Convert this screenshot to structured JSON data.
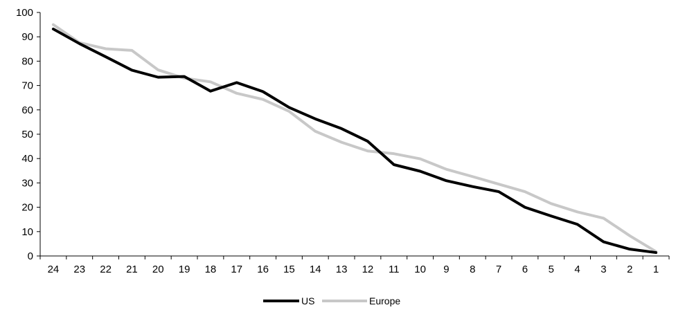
{
  "chart_data": {
    "type": "line",
    "categories": [
      "24",
      "23",
      "22",
      "21",
      "20",
      "19",
      "18",
      "17",
      "16",
      "15",
      "14",
      "13",
      "12",
      "11",
      "10",
      "9",
      "8",
      "7",
      "6",
      "5",
      "4",
      "3",
      "2",
      "1"
    ],
    "series": [
      {
        "name": "US",
        "color": "#000000",
        "values": [
          93.2,
          87.2,
          81.8,
          76.3,
          73.4,
          73.7,
          67.7,
          71.2,
          67.5,
          61.0,
          56.3,
          52.3,
          47.1,
          37.5,
          34.8,
          30.9,
          28.5,
          26.4,
          20.0,
          16.4,
          13.0,
          5.8,
          2.8,
          1.4
        ]
      },
      {
        "name": "Europe",
        "color": "#c8c8c8",
        "values": [
          95.0,
          87.6,
          85.1,
          84.4,
          76.4,
          73.0,
          71.5,
          66.8,
          64.3,
          59.4,
          51.2,
          46.7,
          43.1,
          42.0,
          39.9,
          35.6,
          32.6,
          29.5,
          26.4,
          21.5,
          18.1,
          15.5,
          8.3,
          1.8
        ]
      }
    ],
    "title": "",
    "xlabel": "",
    "ylabel": "",
    "ylim": [
      0,
      100
    ],
    "yticks": [
      "0",
      "10",
      "20",
      "30",
      "40",
      "50",
      "60",
      "70",
      "80",
      "90",
      "100"
    ],
    "grid": false,
    "legend_position": "bottom"
  }
}
